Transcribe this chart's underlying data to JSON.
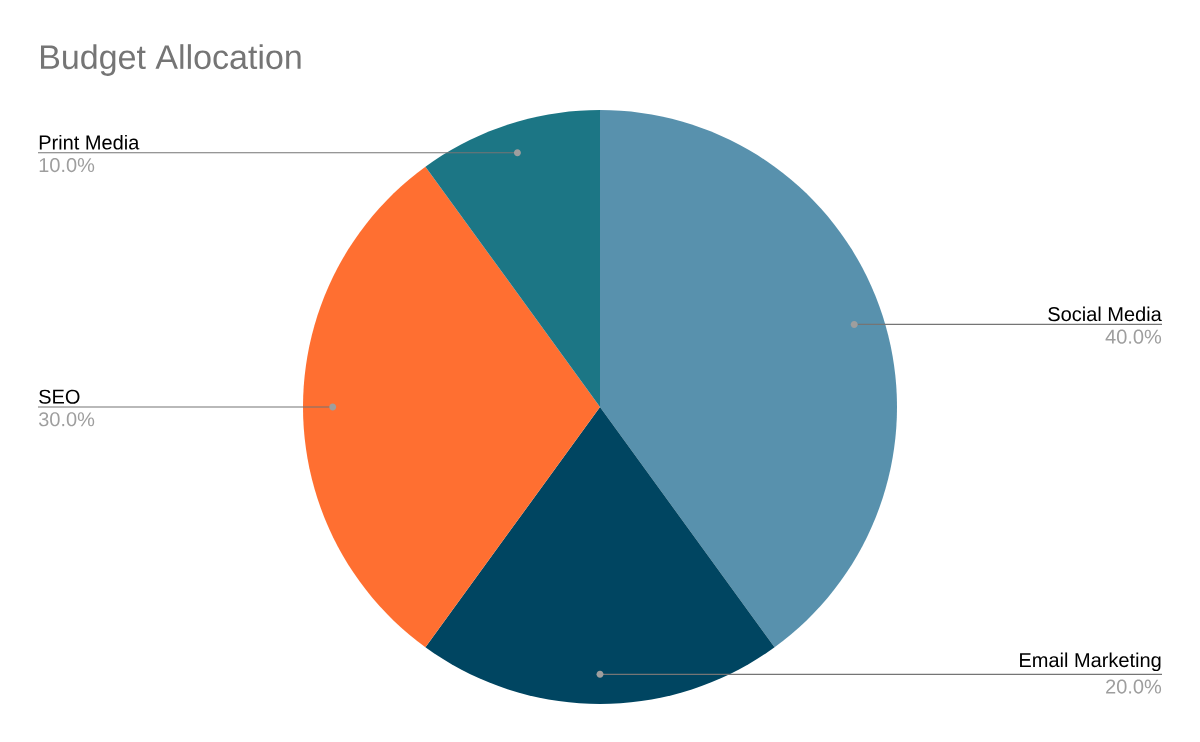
{
  "chart_data": {
    "type": "pie",
    "title": "Budget Allocation",
    "categories": [
      "Social Media",
      "Email Marketing",
      "SEO",
      "Print Media"
    ],
    "values": [
      40,
      20,
      30,
      10
    ],
    "colors": [
      "#5891ad",
      "#004561",
      "#ff6f31",
      "#1c7685"
    ],
    "value_labels": [
      "40.0%",
      "20.0%",
      "30.0%",
      "10.0%"
    ]
  }
}
